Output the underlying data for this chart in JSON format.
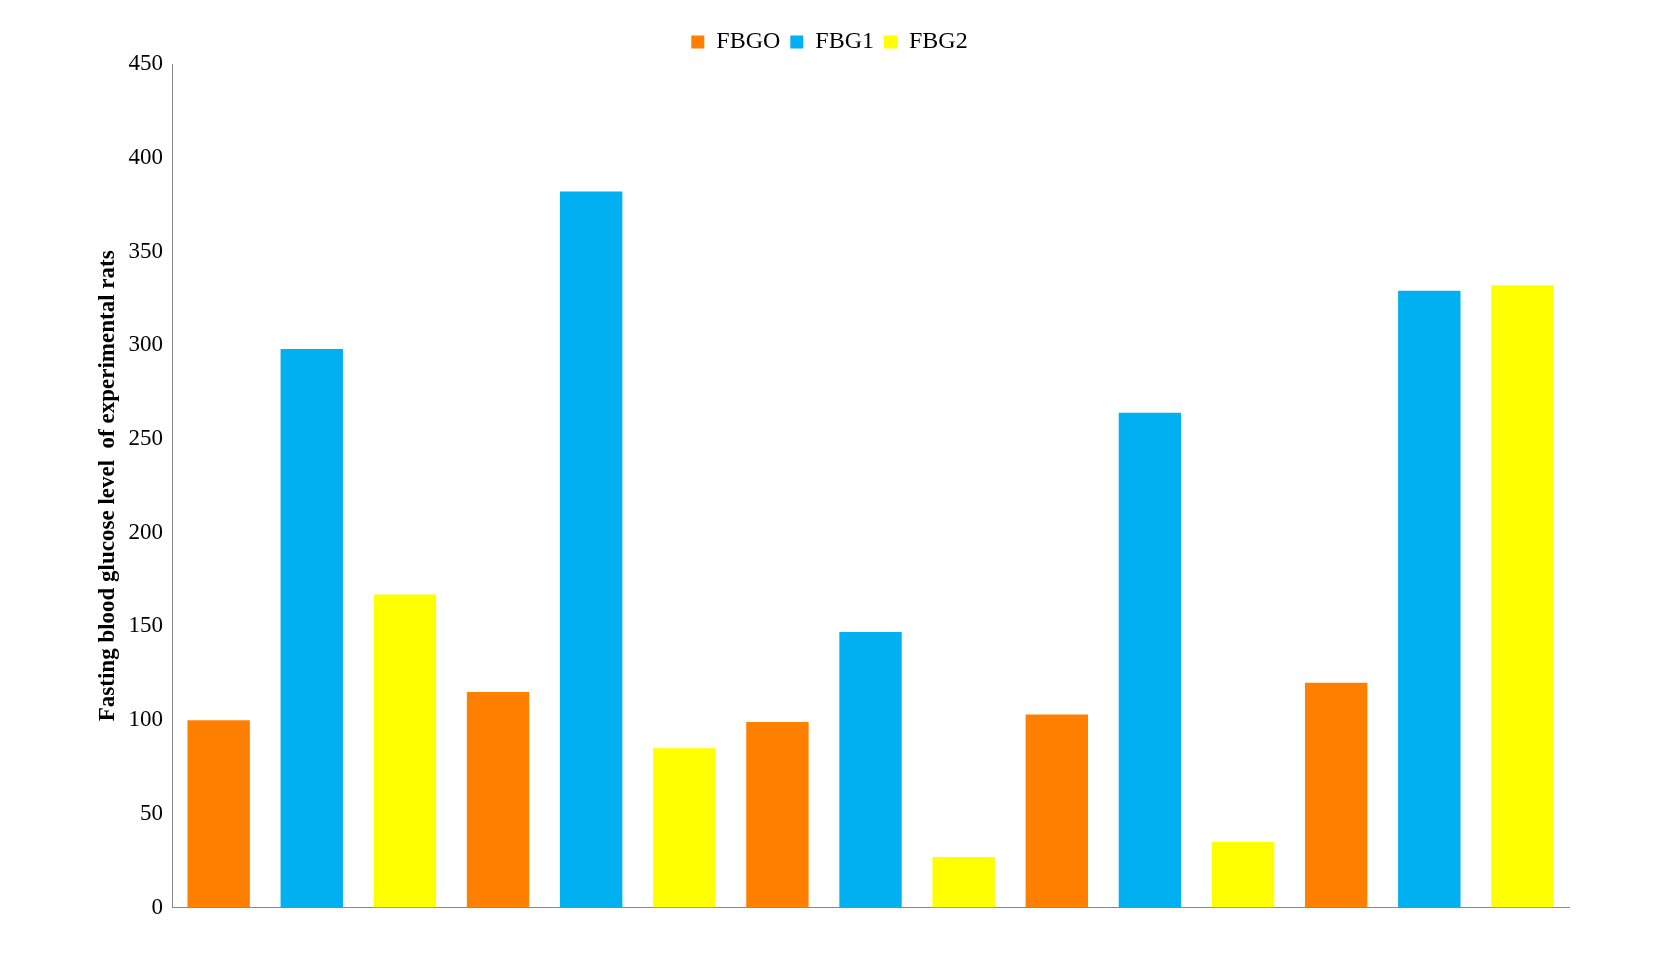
{
  "chart_data": {
    "type": "bar",
    "ylabel": "Fasting blood glucose level  of experimental rats",
    "categories": [
      null,
      null,
      null,
      null,
      null
    ],
    "series": [
      {
        "name": "FBGO",
        "color": "#ff7f00",
        "values": [
          100,
          115,
          99,
          103,
          120
        ]
      },
      {
        "name": "FBG1",
        "color": "#00b0f0",
        "values": [
          298,
          382,
          147,
          264,
          329
        ]
      },
      {
        "name": "FBG2",
        "color": "#ffff00",
        "values": [
          167,
          85,
          27,
          35,
          332
        ]
      }
    ],
    "ylim": [
      0,
      450
    ],
    "yticks": [
      0,
      50,
      100,
      150,
      200,
      250,
      300,
      350,
      400,
      450
    ],
    "grid": false,
    "legend": "top"
  }
}
